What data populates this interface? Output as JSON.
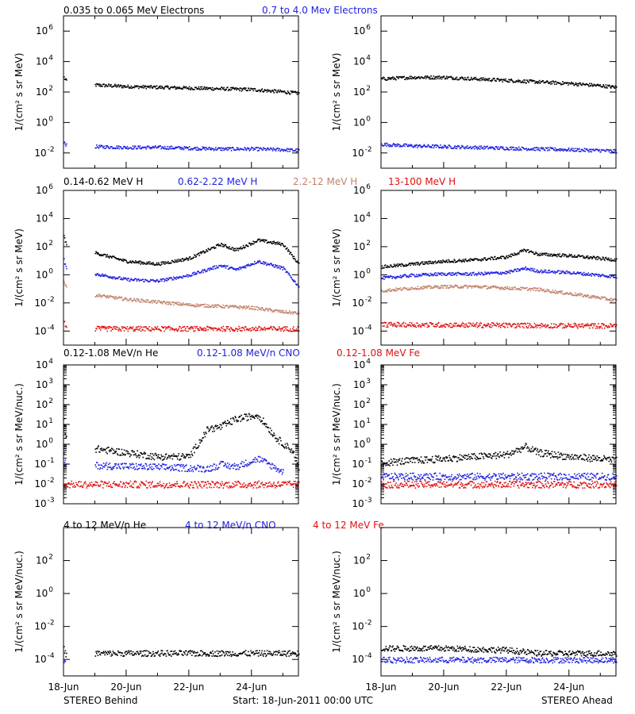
{
  "colors": {
    "black": "#000000",
    "blue": "#1f1fe0",
    "tan": "#c0826a",
    "red": "#e01010"
  },
  "footer": {
    "left": "STEREO Behind",
    "center": "Start: 18-Jun-2011 00:00 UTC",
    "right": "STEREO Ahead"
  },
  "chart_data": [
    {
      "id": "electrons",
      "type": "scatter",
      "scale": "log",
      "ylabel": "1/(cm² s sr MeV)",
      "ylim_exp": [
        -3,
        7
      ],
      "tick_exps": [
        -2,
        0,
        2,
        4,
        6
      ],
      "legend": [
        {
          "label": "0.035 to 0.065 MeV Electrons",
          "color": "black"
        },
        {
          "label": "0.7 to 4.0 Mev Electrons",
          "color": "blue"
        }
      ],
      "panels": [
        {
          "side": "STEREO Behind",
          "series": [
            {
              "color": "black",
              "x": [
                0,
                0.05,
                1.0,
                2,
                3,
                4,
                5,
                6,
                7,
                7.5
              ],
              "y_exp": [
                3.0,
                2.8,
                2.5,
                2.4,
                2.35,
                2.3,
                2.25,
                2.2,
                2.05,
                1.95
              ]
            },
            {
              "color": "blue",
              "x": [
                0,
                0.05,
                1.0,
                2,
                3,
                4,
                5,
                6,
                7,
                7.5
              ],
              "y_exp": [
                -1.3,
                -1.4,
                -1.55,
                -1.6,
                -1.6,
                -1.65,
                -1.7,
                -1.7,
                -1.75,
                -1.8
              ]
            }
          ]
        },
        {
          "side": "STEREO Ahead",
          "series": [
            {
              "color": "black",
              "x": [
                0,
                1,
                2,
                3,
                4,
                5,
                6,
                7,
                7.5
              ],
              "y_exp": [
                2.9,
                3.0,
                3.0,
                2.9,
                2.8,
                2.7,
                2.6,
                2.45,
                2.35
              ]
            },
            {
              "color": "blue",
              "x": [
                0,
                1,
                2,
                3,
                4,
                5,
                6,
                7,
                7.5
              ],
              "y_exp": [
                -1.4,
                -1.5,
                -1.55,
                -1.6,
                -1.65,
                -1.7,
                -1.75,
                -1.8,
                -1.85
              ]
            }
          ]
        }
      ]
    },
    {
      "id": "protons",
      "type": "scatter",
      "scale": "log",
      "ylabel": "1/(cm² s sr MeV)",
      "ylim_exp": [
        -5,
        6
      ],
      "tick_exps": [
        -4,
        -2,
        0,
        2,
        4,
        6
      ],
      "legend": [
        {
          "label": "0.14-0.62 MeV H",
          "color": "black"
        },
        {
          "label": "0.62-2.22 MeV H",
          "color": "blue"
        },
        {
          "label": "2.2-12 MeV H",
          "color": "tan"
        },
        {
          "label": "13-100 MeV H",
          "color": "red"
        }
      ],
      "panels": [
        {
          "side": "STEREO Behind",
          "series": [
            {
              "color": "black",
              "x": [
                0,
                0.05,
                1.0,
                2,
                3,
                4,
                5,
                5.5,
                6.2,
                7.0,
                7.5
              ],
              "y_exp": [
                2.8,
                2.3,
                1.6,
                1.0,
                0.8,
                1.2,
                2.2,
                1.8,
                2.5,
                2.2,
                0.8
              ]
            },
            {
              "color": "blue",
              "x": [
                0,
                0.05,
                1.0,
                2,
                3,
                4,
                5,
                5.5,
                6.2,
                7.0,
                7.5
              ],
              "y_exp": [
                1.1,
                0.6,
                0.1,
                -0.3,
                -0.4,
                0.0,
                0.7,
                0.4,
                1.0,
                0.5,
                -0.8
              ]
            },
            {
              "color": "tan",
              "x": [
                0,
                0.05,
                1.0,
                2,
                3,
                4,
                5,
                6,
                7,
                7.5
              ],
              "y_exp": [
                -0.4,
                -0.8,
                -1.4,
                -1.7,
                -1.9,
                -2.1,
                -2.2,
                -2.3,
                -2.6,
                -2.7
              ]
            },
            {
              "color": "red",
              "x": [
                0,
                0.05,
                1.0,
                7.5
              ],
              "y_exp": [
                -3.3,
                -3.6,
                -3.8,
                -3.8
              ]
            }
          ]
        },
        {
          "side": "STEREO Ahead",
          "series": [
            {
              "color": "black",
              "x": [
                0,
                1,
                2,
                3,
                4,
                4.6,
                5,
                6,
                7,
                7.5
              ],
              "y_exp": [
                0.6,
                0.8,
                1.0,
                1.1,
                1.3,
                1.8,
                1.5,
                1.4,
                1.2,
                1.1
              ]
            },
            {
              "color": "blue",
              "x": [
                0,
                1,
                2,
                3,
                4,
                4.6,
                5,
                6,
                7,
                7.5
              ],
              "y_exp": [
                -0.2,
                0.0,
                0.1,
                0.1,
                0.2,
                0.5,
                0.3,
                0.2,
                0.0,
                -0.1
              ]
            },
            {
              "color": "tan",
              "x": [
                0,
                1,
                2,
                3,
                4,
                5,
                6,
                7,
                7.5
              ],
              "y_exp": [
                -1.1,
                -0.9,
                -0.8,
                -0.8,
                -0.9,
                -1.0,
                -1.3,
                -1.6,
                -1.8
              ]
            },
            {
              "color": "red",
              "x": [
                0,
                7.5
              ],
              "y_exp": [
                -3.5,
                -3.6
              ]
            }
          ]
        }
      ]
    },
    {
      "id": "heavy-low",
      "type": "scatter",
      "scale": "log",
      "ylabel": "1/(cm² s sr MeV/nuc.)",
      "ylim_exp": [
        -3,
        4
      ],
      "tick_exps": [
        -3,
        -2,
        -1,
        0,
        1,
        2,
        3,
        4
      ],
      "legend": [
        {
          "label": "0.12-1.08 MeV/n He",
          "color": "black"
        },
        {
          "label": "0.12-1.08 MeV/n CNO",
          "color": "blue"
        },
        {
          "label": "0.12-1.08 MeV Fe",
          "color": "red"
        }
      ],
      "panels": [
        {
          "side": "STEREO Behind",
          "series": [
            {
              "color": "black",
              "x": [
                0,
                0.05,
                1.0,
                2,
                3,
                4,
                4.6,
                5,
                5.5,
                6.2,
                6.8,
                7.3,
                7.5
              ],
              "y_exp": [
                1.2,
                0.5,
                -0.2,
                -0.4,
                -0.6,
                -0.6,
                0.8,
                0.9,
                1.3,
                1.5,
                0.3,
                -0.3,
                -1.2
              ]
            },
            {
              "color": "blue",
              "x": [
                0,
                0.05,
                4.6,
                5,
                5.5,
                6.2,
                6.8,
                7.0
              ],
              "y_exp": [
                -0.6,
                -1.0,
                -1.2,
                -1.0,
                -1.1,
                -0.7,
                -1.2,
                -1.4
              ]
            },
            {
              "color": "red",
              "x": [
                0,
                7.5
              ],
              "y_exp": [
                -2.0,
                -2.0
              ]
            }
          ]
        },
        {
          "side": "STEREO Ahead",
          "series": [
            {
              "color": "black",
              "x": [
                0,
                1,
                2,
                3,
                4,
                4.6,
                5,
                6,
                7,
                7.5
              ],
              "y_exp": [
                -0.9,
                -0.8,
                -0.7,
                -0.6,
                -0.5,
                -0.1,
                -0.4,
                -0.6,
                -0.7,
                -0.8
              ]
            },
            {
              "color": "blue",
              "x": [
                0,
                7.5
              ],
              "y_exp": [
                -1.6,
                -1.6
              ]
            },
            {
              "color": "red",
              "x": [
                0,
                7.5
              ],
              "y_exp": [
                -2.0,
                -2.0
              ]
            }
          ]
        }
      ]
    },
    {
      "id": "heavy-high",
      "type": "scatter",
      "scale": "log",
      "ylabel": "1/(cm² s sr MeV/nuc.)",
      "ylim_exp": [
        -5,
        4
      ],
      "tick_exps": [
        -4,
        -2,
        0,
        2
      ],
      "legend": [
        {
          "label": "4 to 12 MeV/n He",
          "color": "black"
        },
        {
          "label": "4 to 12 MeV/n CNO",
          "color": "blue"
        },
        {
          "label": "4 to 12 MeV Fe",
          "color": "red"
        }
      ],
      "panels": [
        {
          "side": "STEREO Behind",
          "series": [
            {
              "color": "black",
              "x": [
                0,
                0.05,
                1.0,
                7.5
              ],
              "y_exp": [
                -3.2,
                -3.7,
                -3.6,
                -3.6
              ]
            },
            {
              "color": "blue",
              "x": [
                0,
                0.05
              ],
              "y_exp": [
                -4.0,
                -4.0
              ]
            }
          ]
        },
        {
          "side": "STEREO Ahead",
          "series": [
            {
              "color": "black",
              "x": [
                0,
                2,
                4,
                5,
                7.5
              ],
              "y_exp": [
                -3.3,
                -3.3,
                -3.4,
                -3.6,
                -3.6
              ]
            },
            {
              "color": "blue",
              "x": [
                0,
                7.5
              ],
              "y_exp": [
                -4.0,
                -4.0
              ]
            }
          ]
        }
      ]
    }
  ],
  "xaxis": {
    "tick_values": [
      0,
      2,
      4,
      6
    ],
    "tick_labels": [
      "18-Jun",
      "20-Jun",
      "22-Jun",
      "24-Jun"
    ],
    "xlim": [
      0,
      7.5
    ]
  }
}
